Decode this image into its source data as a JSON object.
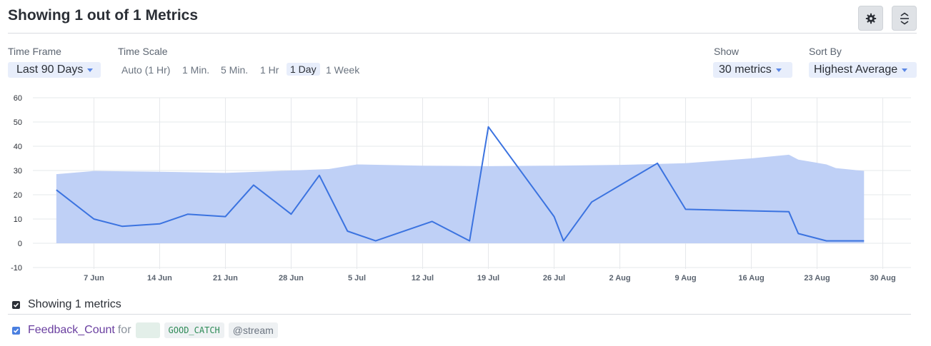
{
  "header": {
    "title": "Showing 1 out of 1 Metrics",
    "settings_icon": "gear-icon",
    "collapse_icon": "collapse-expand-icon"
  },
  "controls": {
    "time_frame": {
      "label": "Time Frame",
      "value": "Last 90 Days"
    },
    "time_scale": {
      "label": "Time Scale",
      "options": [
        "Auto (1 Hr)",
        "1 Min.",
        "5 Min.",
        "1 Hr",
        "1 Day",
        "1 Week"
      ],
      "selected": "1 Day"
    },
    "show": {
      "label": "Show",
      "value": "30 metrics"
    },
    "sort_by": {
      "label": "Sort By",
      "value": "Highest Average"
    }
  },
  "colors": {
    "line": "#3b73e0",
    "band": "#bfd0f6",
    "grid": "#e6e8eb",
    "metric_name": "#6a3fa0",
    "tag_text": "#2e8b57"
  },
  "chart_data": {
    "type": "line",
    "x_tick_labels": [
      "7 Jun",
      "14 Jun",
      "21 Jun",
      "28 Jun",
      "5 Jul",
      "12 Jul",
      "19 Jul",
      "26 Jul",
      "2 Aug",
      "9 Aug",
      "16 Aug",
      "23 Aug",
      "30 Aug"
    ],
    "x_tick_days": [
      7,
      14,
      21,
      28,
      35,
      42,
      49,
      56,
      63,
      70,
      77,
      84,
      91
    ],
    "x_range_days": [
      0.5,
      94
    ],
    "y_ticks": [
      60,
      50,
      40,
      30,
      20,
      10,
      0,
      -10
    ],
    "ylim": [
      -10,
      60
    ],
    "grid": true,
    "series": [
      {
        "name": "Feedback_Count",
        "points": [
          [
            "3 Jun",
            22
          ],
          [
            "7 Jun",
            10
          ],
          [
            "10 Jun",
            7
          ],
          [
            "14 Jun",
            8
          ],
          [
            "17 Jun",
            12
          ],
          [
            "21 Jun",
            11
          ],
          [
            "24 Jun",
            24
          ],
          [
            "28 Jun",
            12
          ],
          [
            "1 Jul",
            28
          ],
          [
            "4 Jul",
            5
          ],
          [
            "7 Jul",
            1
          ],
          [
            "13 Jul",
            9
          ],
          [
            "17 Jul",
            1
          ],
          [
            "19 Jul",
            48
          ],
          [
            "26 Jul",
            11
          ],
          [
            "27 Jul",
            1
          ],
          [
            "30 Jul",
            17
          ],
          [
            "6 Aug",
            33
          ],
          [
            "9 Aug",
            14
          ],
          [
            "20 Aug",
            13
          ],
          [
            "21 Aug",
            4
          ],
          [
            "24 Aug",
            1
          ],
          [
            "28 Aug",
            1
          ]
        ]
      }
    ],
    "band": {
      "points": [
        [
          "3 Jun",
          28.5
        ],
        [
          "7 Jun",
          29.8
        ],
        [
          "14 Jun",
          29.5
        ],
        [
          "21 Jun",
          29
        ],
        [
          "28 Jun",
          30
        ],
        [
          "2 Jul",
          30.6
        ],
        [
          "5 Jul",
          32.5
        ],
        [
          "12 Jul",
          32
        ],
        [
          "19 Jul",
          31.8
        ],
        [
          "26 Jul",
          32
        ],
        [
          "2 Aug",
          32.3
        ],
        [
          "9 Aug",
          33
        ],
        [
          "16 Aug",
          35
        ],
        [
          "20 Aug",
          36.5
        ],
        [
          "21 Aug",
          34.5
        ],
        [
          "24 Aug",
          32.5
        ],
        [
          "25 Aug",
          31
        ],
        [
          "28 Aug",
          29.8
        ]
      ]
    }
  },
  "legend": {
    "header_label": "Showing 1 metrics",
    "items": [
      {
        "name": "Feedback_Count",
        "for_text": "for",
        "tag": "GOOD_CATCH",
        "stream": "@stream"
      }
    ]
  }
}
